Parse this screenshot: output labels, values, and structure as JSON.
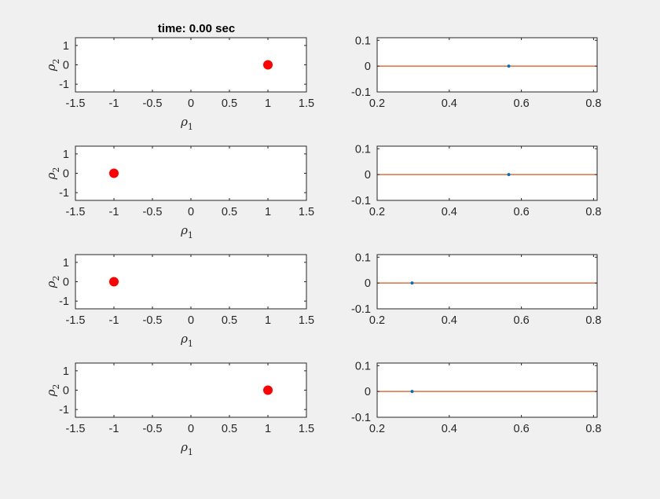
{
  "figure": {
    "title": "time: 0.00 sec",
    "background": "#f0f0f0",
    "axes_background": "#ffffff",
    "axes_color": "#262626"
  },
  "chart_data": [
    {
      "type": "scatter",
      "row": 1,
      "col": 1,
      "title": "time: 0.00 sec",
      "xlabel": "ρ",
      "xlabel_sub": "1",
      "ylabel": "ρ",
      "ylabel_sub": "2",
      "xlim": [
        -1.5,
        1.5
      ],
      "ylim": [
        -1.4,
        1.4
      ],
      "xticks": [
        -1.5,
        -1,
        -0.5,
        0,
        0.5,
        1,
        1.5
      ],
      "xticklabels": [
        "-1.5",
        "-1",
        "-0.5",
        "0",
        "0.5",
        "1",
        "1.5"
      ],
      "yticks": [
        -1,
        0,
        1
      ],
      "yticklabels": [
        "-1",
        "0",
        "1"
      ],
      "points": [
        {
          "x": 1,
          "y": 0
        }
      ],
      "marker_color": "#ff0000"
    },
    {
      "type": "line",
      "row": 1,
      "col": 2,
      "xlim": [
        0.2,
        0.81
      ],
      "ylim": [
        -0.1,
        0.11
      ],
      "xticks": [
        0.2,
        0.4,
        0.6,
        0.8
      ],
      "xticklabels": [
        "0.2",
        "0.4",
        "0.6",
        "0.8"
      ],
      "yticks": [
        -0.1,
        0,
        0.1
      ],
      "yticklabels": [
        "-0.1",
        "0",
        "0.1"
      ],
      "line": {
        "x": [
          0.2,
          0.81
        ],
        "y": [
          0,
          0
        ],
        "color": "#d95319"
      },
      "points": [
        {
          "x": 0.565,
          "y": 0
        }
      ],
      "marker_color": "#0072bd"
    },
    {
      "type": "scatter",
      "row": 2,
      "col": 1,
      "xlabel": "ρ",
      "xlabel_sub": "1",
      "ylabel": "ρ",
      "ylabel_sub": "2",
      "xlim": [
        -1.5,
        1.5
      ],
      "ylim": [
        -1.4,
        1.4
      ],
      "xticks": [
        -1.5,
        -1,
        -0.5,
        0,
        0.5,
        1,
        1.5
      ],
      "xticklabels": [
        "-1.5",
        "-1",
        "-0.5",
        "0",
        "0.5",
        "1",
        "1.5"
      ],
      "yticks": [
        -1,
        0,
        1
      ],
      "yticklabels": [
        "-1",
        "0",
        "1"
      ],
      "points": [
        {
          "x": -1,
          "y": 0
        }
      ],
      "marker_color": "#ff0000"
    },
    {
      "type": "line",
      "row": 2,
      "col": 2,
      "xlim": [
        0.2,
        0.81
      ],
      "ylim": [
        -0.1,
        0.11
      ],
      "xticks": [
        0.2,
        0.4,
        0.6,
        0.8
      ],
      "xticklabels": [
        "0.2",
        "0.4",
        "0.6",
        "0.8"
      ],
      "yticks": [
        -0.1,
        0,
        0.1
      ],
      "yticklabels": [
        "-0.1",
        "0",
        "0.1"
      ],
      "line": {
        "x": [
          0.2,
          0.81
        ],
        "y": [
          0,
          0
        ],
        "color": "#d95319"
      },
      "points": [
        {
          "x": 0.565,
          "y": 0
        }
      ],
      "marker_color": "#0072bd"
    },
    {
      "type": "scatter",
      "row": 3,
      "col": 1,
      "xlabel": "ρ",
      "xlabel_sub": "1",
      "ylabel": "ρ",
      "ylabel_sub": "2",
      "xlim": [
        -1.5,
        1.5
      ],
      "ylim": [
        -1.4,
        1.4
      ],
      "xticks": [
        -1.5,
        -1,
        -0.5,
        0,
        0.5,
        1,
        1.5
      ],
      "xticklabels": [
        "-1.5",
        "-1",
        "-0.5",
        "0",
        "0.5",
        "1",
        "1.5"
      ],
      "yticks": [
        -1,
        0,
        1
      ],
      "yticklabels": [
        "-1",
        "0",
        "1"
      ],
      "points": [
        {
          "x": -1,
          "y": 0
        }
      ],
      "marker_color": "#ff0000"
    },
    {
      "type": "line",
      "row": 3,
      "col": 2,
      "xlim": [
        0.2,
        0.81
      ],
      "ylim": [
        -0.1,
        0.11
      ],
      "xticks": [
        0.2,
        0.4,
        0.6,
        0.8
      ],
      "xticklabels": [
        "0.2",
        "0.4",
        "0.6",
        "0.8"
      ],
      "yticks": [
        -0.1,
        0,
        0.1
      ],
      "yticklabels": [
        "-0.1",
        "0",
        "0.1"
      ],
      "line": {
        "x": [
          0.2,
          0.81
        ],
        "y": [
          0,
          0
        ],
        "color": "#d95319"
      },
      "points": [
        {
          "x": 0.297,
          "y": 0
        }
      ],
      "marker_color": "#0072bd"
    },
    {
      "type": "scatter",
      "row": 4,
      "col": 1,
      "xlabel": "ρ",
      "xlabel_sub": "1",
      "ylabel": "ρ",
      "ylabel_sub": "2",
      "xlim": [
        -1.5,
        1.5
      ],
      "ylim": [
        -1.4,
        1.4
      ],
      "xticks": [
        -1.5,
        -1,
        -0.5,
        0,
        0.5,
        1,
        1.5
      ],
      "xticklabels": [
        "-1.5",
        "-1",
        "-0.5",
        "0",
        "0.5",
        "1",
        "1.5"
      ],
      "yticks": [
        -1,
        0,
        1
      ],
      "yticklabels": [
        "-1",
        "0",
        "1"
      ],
      "points": [
        {
          "x": 1,
          "y": 0
        }
      ],
      "marker_color": "#ff0000"
    },
    {
      "type": "line",
      "row": 4,
      "col": 2,
      "xlim": [
        0.2,
        0.81
      ],
      "ylim": [
        -0.1,
        0.11
      ],
      "xticks": [
        0.2,
        0.4,
        0.6,
        0.8
      ],
      "xticklabels": [
        "0.2",
        "0.4",
        "0.6",
        "0.8"
      ],
      "yticks": [
        -0.1,
        0,
        0.1
      ],
      "yticklabels": [
        "-0.1",
        "0",
        "0.1"
      ],
      "line": {
        "x": [
          0.2,
          0.81
        ],
        "y": [
          0,
          0
        ],
        "color": "#d95319"
      },
      "points": [
        {
          "x": 0.297,
          "y": 0
        }
      ],
      "marker_color": "#0072bd"
    }
  ]
}
